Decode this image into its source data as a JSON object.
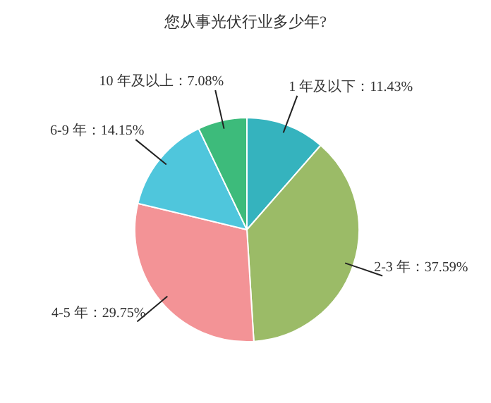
{
  "chart_data": {
    "type": "pie",
    "title": "您从事光伏行业多少年?",
    "categories": [
      "1 年及以下",
      "2-3 年",
      "4-5 年",
      "6-9 年",
      "10 年及以上"
    ],
    "values": [
      11.43,
      37.59,
      29.75,
      14.15,
      7.08
    ],
    "value_labels": [
      "11.43%",
      "37.59%",
      "29.75%",
      "14.15%",
      "7.08%"
    ],
    "colors": [
      "#35b3be",
      "#9bbb67",
      "#f39396",
      "#4fc6dc",
      "#3dbb7b"
    ],
    "legend": false
  }
}
